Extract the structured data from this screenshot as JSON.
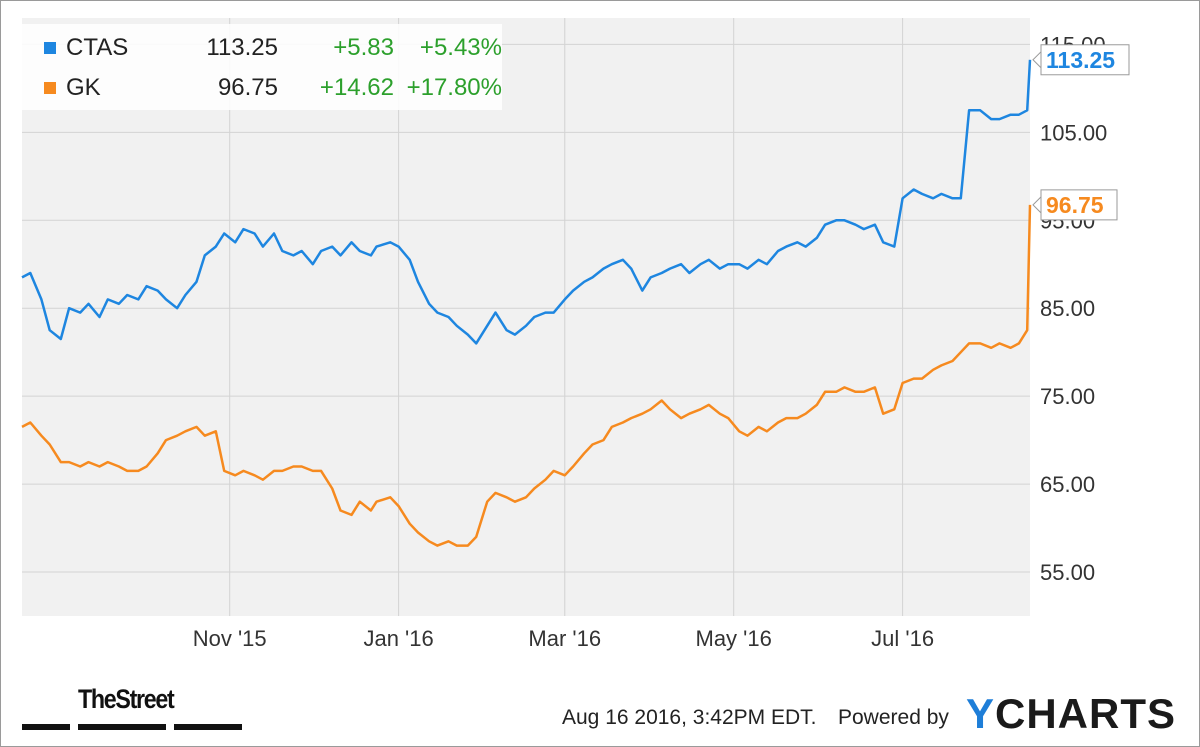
{
  "chart_data": {
    "type": "line",
    "title": "",
    "xlabel": "",
    "ylabel": "",
    "x_tick_labels": [
      "Nov '15",
      "Jan '16",
      "Mar '16",
      "May '16",
      "Jul '16"
    ],
    "y_tick_labels": [
      "55.00",
      "65.00",
      "75.00",
      "85.00",
      "95.00",
      "105.00",
      "115.00"
    ],
    "ylim": [
      50,
      118
    ],
    "xlim": [
      "2015-08-18",
      "2016-08-16"
    ],
    "grid": true,
    "legend_position": "top-left",
    "series": [
      {
        "name": "CTAS",
        "color": "#1e86e0",
        "last_value": 113.25,
        "last_label": "113.25",
        "price": "113.25",
        "change": "+5.83",
        "change_pct": "+5.43%",
        "points": [
          [
            "2015-08-18",
            88.5
          ],
          [
            "2015-08-21",
            89.0
          ],
          [
            "2015-08-25",
            86.0
          ],
          [
            "2015-08-28",
            82.5
          ],
          [
            "2015-09-01",
            81.5
          ],
          [
            "2015-09-04",
            85.0
          ],
          [
            "2015-09-08",
            84.5
          ],
          [
            "2015-09-11",
            85.5
          ],
          [
            "2015-09-15",
            84.0
          ],
          [
            "2015-09-18",
            86.0
          ],
          [
            "2015-09-22",
            85.5
          ],
          [
            "2015-09-25",
            86.5
          ],
          [
            "2015-09-29",
            86.0
          ],
          [
            "2015-10-02",
            87.5
          ],
          [
            "2015-10-06",
            87.0
          ],
          [
            "2015-10-09",
            86.0
          ],
          [
            "2015-10-13",
            85.0
          ],
          [
            "2015-10-16",
            86.5
          ],
          [
            "2015-10-20",
            88.0
          ],
          [
            "2015-10-23",
            91.0
          ],
          [
            "2015-10-27",
            92.0
          ],
          [
            "2015-10-30",
            93.5
          ],
          [
            "2015-11-03",
            92.5
          ],
          [
            "2015-11-06",
            94.0
          ],
          [
            "2015-11-10",
            93.5
          ],
          [
            "2015-11-13",
            92.0
          ],
          [
            "2015-11-17",
            93.5
          ],
          [
            "2015-11-20",
            91.5
          ],
          [
            "2015-11-24",
            91.0
          ],
          [
            "2015-11-27",
            91.5
          ],
          [
            "2015-12-01",
            90.0
          ],
          [
            "2015-12-04",
            91.5
          ],
          [
            "2015-12-08",
            92.0
          ],
          [
            "2015-12-11",
            91.0
          ],
          [
            "2015-12-15",
            92.5
          ],
          [
            "2015-12-18",
            91.5
          ],
          [
            "2015-12-22",
            91.0
          ],
          [
            "2015-12-24",
            92.0
          ],
          [
            "2015-12-29",
            92.5
          ],
          [
            "2016-01-01",
            92.0
          ],
          [
            "2016-01-05",
            90.5
          ],
          [
            "2016-01-08",
            88.0
          ],
          [
            "2016-01-12",
            85.5
          ],
          [
            "2016-01-15",
            84.5
          ],
          [
            "2016-01-19",
            84.0
          ],
          [
            "2016-01-22",
            83.0
          ],
          [
            "2016-01-26",
            82.0
          ],
          [
            "2016-01-29",
            81.0
          ],
          [
            "2016-02-02",
            83.0
          ],
          [
            "2016-02-05",
            84.5
          ],
          [
            "2016-02-09",
            82.5
          ],
          [
            "2016-02-12",
            82.0
          ],
          [
            "2016-02-16",
            83.0
          ],
          [
            "2016-02-19",
            84.0
          ],
          [
            "2016-02-23",
            84.5
          ],
          [
            "2016-02-26",
            84.5
          ],
          [
            "2016-03-01",
            86.0
          ],
          [
            "2016-03-04",
            87.0
          ],
          [
            "2016-03-08",
            88.0
          ],
          [
            "2016-03-11",
            88.5
          ],
          [
            "2016-03-15",
            89.5
          ],
          [
            "2016-03-18",
            90.0
          ],
          [
            "2016-03-22",
            90.5
          ],
          [
            "2016-03-25",
            89.5
          ],
          [
            "2016-03-29",
            87.0
          ],
          [
            "2016-04-01",
            88.5
          ],
          [
            "2016-04-05",
            89.0
          ],
          [
            "2016-04-08",
            89.5
          ],
          [
            "2016-04-12",
            90.0
          ],
          [
            "2016-04-15",
            89.0
          ],
          [
            "2016-04-19",
            90.0
          ],
          [
            "2016-04-22",
            90.5
          ],
          [
            "2016-04-26",
            89.5
          ],
          [
            "2016-04-29",
            90.0
          ],
          [
            "2016-05-03",
            90.0
          ],
          [
            "2016-05-06",
            89.5
          ],
          [
            "2016-05-10",
            90.5
          ],
          [
            "2016-05-13",
            90.0
          ],
          [
            "2016-05-17",
            91.5
          ],
          [
            "2016-05-20",
            92.0
          ],
          [
            "2016-05-24",
            92.5
          ],
          [
            "2016-05-27",
            92.0
          ],
          [
            "2016-05-31",
            93.0
          ],
          [
            "2016-06-03",
            94.5
          ],
          [
            "2016-06-07",
            95.0
          ],
          [
            "2016-06-10",
            95.0
          ],
          [
            "2016-06-14",
            94.5
          ],
          [
            "2016-06-17",
            94.0
          ],
          [
            "2016-06-21",
            94.5
          ],
          [
            "2016-06-24",
            92.5
          ],
          [
            "2016-06-28",
            92.0
          ],
          [
            "2016-07-01",
            97.5
          ],
          [
            "2016-07-05",
            98.5
          ],
          [
            "2016-07-08",
            98.0
          ],
          [
            "2016-07-12",
            97.5
          ],
          [
            "2016-07-15",
            98.0
          ],
          [
            "2016-07-19",
            97.5
          ],
          [
            "2016-07-22",
            97.5
          ],
          [
            "2016-07-25",
            107.5
          ],
          [
            "2016-07-29",
            107.5
          ],
          [
            "2016-08-02",
            106.5
          ],
          [
            "2016-08-05",
            106.5
          ],
          [
            "2016-08-09",
            107.0
          ],
          [
            "2016-08-12",
            107.0
          ],
          [
            "2016-08-15",
            107.5
          ],
          [
            "2016-08-16",
            113.25
          ]
        ]
      },
      {
        "name": "GK",
        "color": "#f68a1f",
        "last_value": 96.75,
        "last_label": "96.75",
        "price": "96.75",
        "change": "+14.62",
        "change_pct": "+17.80%",
        "points": [
          [
            "2015-08-18",
            71.5
          ],
          [
            "2015-08-21",
            72.0
          ],
          [
            "2015-08-25",
            70.5
          ],
          [
            "2015-08-28",
            69.5
          ],
          [
            "2015-09-01",
            67.5
          ],
          [
            "2015-09-04",
            67.5
          ],
          [
            "2015-09-08",
            67.0
          ],
          [
            "2015-09-11",
            67.5
          ],
          [
            "2015-09-15",
            67.0
          ],
          [
            "2015-09-18",
            67.5
          ],
          [
            "2015-09-22",
            67.0
          ],
          [
            "2015-09-25",
            66.5
          ],
          [
            "2015-09-29",
            66.5
          ],
          [
            "2015-10-02",
            67.0
          ],
          [
            "2015-10-06",
            68.5
          ],
          [
            "2015-10-09",
            70.0
          ],
          [
            "2015-10-13",
            70.5
          ],
          [
            "2015-10-16",
            71.0
          ],
          [
            "2015-10-20",
            71.5
          ],
          [
            "2015-10-23",
            70.5
          ],
          [
            "2015-10-27",
            71.0
          ],
          [
            "2015-10-30",
            66.5
          ],
          [
            "2015-11-03",
            66.0
          ],
          [
            "2015-11-06",
            66.5
          ],
          [
            "2015-11-10",
            66.0
          ],
          [
            "2015-11-13",
            65.5
          ],
          [
            "2015-11-17",
            66.5
          ],
          [
            "2015-11-20",
            66.5
          ],
          [
            "2015-11-24",
            67.0
          ],
          [
            "2015-11-27",
            67.0
          ],
          [
            "2015-12-01",
            66.5
          ],
          [
            "2015-12-04",
            66.5
          ],
          [
            "2015-12-08",
            64.5
          ],
          [
            "2015-12-11",
            62.0
          ],
          [
            "2015-12-15",
            61.5
          ],
          [
            "2015-12-18",
            63.0
          ],
          [
            "2015-12-22",
            62.0
          ],
          [
            "2015-12-24",
            63.0
          ],
          [
            "2015-12-29",
            63.5
          ],
          [
            "2016-01-01",
            62.5
          ],
          [
            "2016-01-05",
            60.5
          ],
          [
            "2016-01-08",
            59.5
          ],
          [
            "2016-01-12",
            58.5
          ],
          [
            "2016-01-15",
            58.0
          ],
          [
            "2016-01-19",
            58.5
          ],
          [
            "2016-01-22",
            58.0
          ],
          [
            "2016-01-26",
            58.0
          ],
          [
            "2016-01-29",
            59.0
          ],
          [
            "2016-02-02",
            63.0
          ],
          [
            "2016-02-05",
            64.0
          ],
          [
            "2016-02-09",
            63.5
          ],
          [
            "2016-02-12",
            63.0
          ],
          [
            "2016-02-16",
            63.5
          ],
          [
            "2016-02-19",
            64.5
          ],
          [
            "2016-02-23",
            65.5
          ],
          [
            "2016-02-26",
            66.5
          ],
          [
            "2016-03-01",
            66.0
          ],
          [
            "2016-03-04",
            67.0
          ],
          [
            "2016-03-08",
            68.5
          ],
          [
            "2016-03-11",
            69.5
          ],
          [
            "2016-03-15",
            70.0
          ],
          [
            "2016-03-18",
            71.5
          ],
          [
            "2016-03-22",
            72.0
          ],
          [
            "2016-03-25",
            72.5
          ],
          [
            "2016-03-29",
            73.0
          ],
          [
            "2016-04-01",
            73.5
          ],
          [
            "2016-04-05",
            74.5
          ],
          [
            "2016-04-08",
            73.5
          ],
          [
            "2016-04-12",
            72.5
          ],
          [
            "2016-04-15",
            73.0
          ],
          [
            "2016-04-19",
            73.5
          ],
          [
            "2016-04-22",
            74.0
          ],
          [
            "2016-04-26",
            73.0
          ],
          [
            "2016-04-29",
            72.5
          ],
          [
            "2016-05-03",
            71.0
          ],
          [
            "2016-05-06",
            70.5
          ],
          [
            "2016-05-10",
            71.5
          ],
          [
            "2016-05-13",
            71.0
          ],
          [
            "2016-05-17",
            72.0
          ],
          [
            "2016-05-20",
            72.5
          ],
          [
            "2016-05-24",
            72.5
          ],
          [
            "2016-05-27",
            73.0
          ],
          [
            "2016-05-31",
            74.0
          ],
          [
            "2016-06-03",
            75.5
          ],
          [
            "2016-06-07",
            75.5
          ],
          [
            "2016-06-10",
            76.0
          ],
          [
            "2016-06-14",
            75.5
          ],
          [
            "2016-06-17",
            75.5
          ],
          [
            "2016-06-21",
            76.0
          ],
          [
            "2016-06-24",
            73.0
          ],
          [
            "2016-06-28",
            73.5
          ],
          [
            "2016-07-01",
            76.5
          ],
          [
            "2016-07-05",
            77.0
          ],
          [
            "2016-07-08",
            77.0
          ],
          [
            "2016-07-12",
            78.0
          ],
          [
            "2016-07-15",
            78.5
          ],
          [
            "2016-07-19",
            79.0
          ],
          [
            "2016-07-22",
            80.0
          ],
          [
            "2016-07-25",
            81.0
          ],
          [
            "2016-07-29",
            81.0
          ],
          [
            "2016-08-02",
            80.5
          ],
          [
            "2016-08-05",
            81.0
          ],
          [
            "2016-08-09",
            80.5
          ],
          [
            "2016-08-12",
            81.0
          ],
          [
            "2016-08-15",
            82.5
          ],
          [
            "2016-08-16",
            96.75
          ]
        ]
      }
    ]
  },
  "footer": {
    "timestamp": "Aug 16 2016, 3:42PM EDT.",
    "powered_by": "Powered by",
    "ycharts_y": "Y",
    "ycharts_rest": "CHARTS",
    "brand": "TheStreet"
  },
  "colors": {
    "plot_background": "#f1f1f1",
    "grid": "#d3d3d3",
    "gain": "#2ca02c"
  }
}
